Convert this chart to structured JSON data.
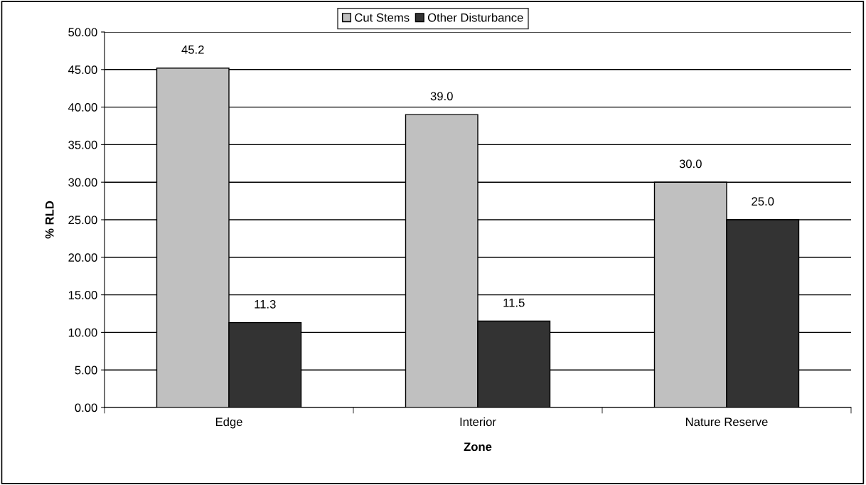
{
  "chart_data": {
    "type": "bar",
    "xlabel": "Zone",
    "ylabel": "% RLD",
    "categories": [
      "Edge",
      "Interior",
      "Nature Reserve"
    ],
    "series": [
      {
        "name": "Cut Stems",
        "color": "#c0c0c0",
        "values": [
          45.2,
          39.0,
          30.0
        ],
        "value_labels": [
          "45.2",
          "39.0",
          "30.0"
        ]
      },
      {
        "name": "Other Disturbance",
        "color": "#333333",
        "values": [
          11.3,
          11.5,
          25.0
        ],
        "value_labels": [
          "11.3",
          "11.5",
          "25.0"
        ]
      }
    ],
    "ylim": [
      0,
      50
    ],
    "yticks": [
      {
        "value": 0,
        "label": "0.00"
      },
      {
        "value": 5,
        "label": "5.00"
      },
      {
        "value": 10,
        "label": "10.00"
      },
      {
        "value": 15,
        "label": "15.00"
      },
      {
        "value": 20,
        "label": "20.00"
      },
      {
        "value": 25,
        "label": "25.00"
      },
      {
        "value": 30,
        "label": "30.00"
      },
      {
        "value": 35,
        "label": "35.00"
      },
      {
        "value": 40,
        "label": "40.00"
      },
      {
        "value": 45,
        "label": "45.00"
      },
      {
        "value": 50,
        "label": "50.00"
      }
    ],
    "grid": "y",
    "legend": "top"
  }
}
